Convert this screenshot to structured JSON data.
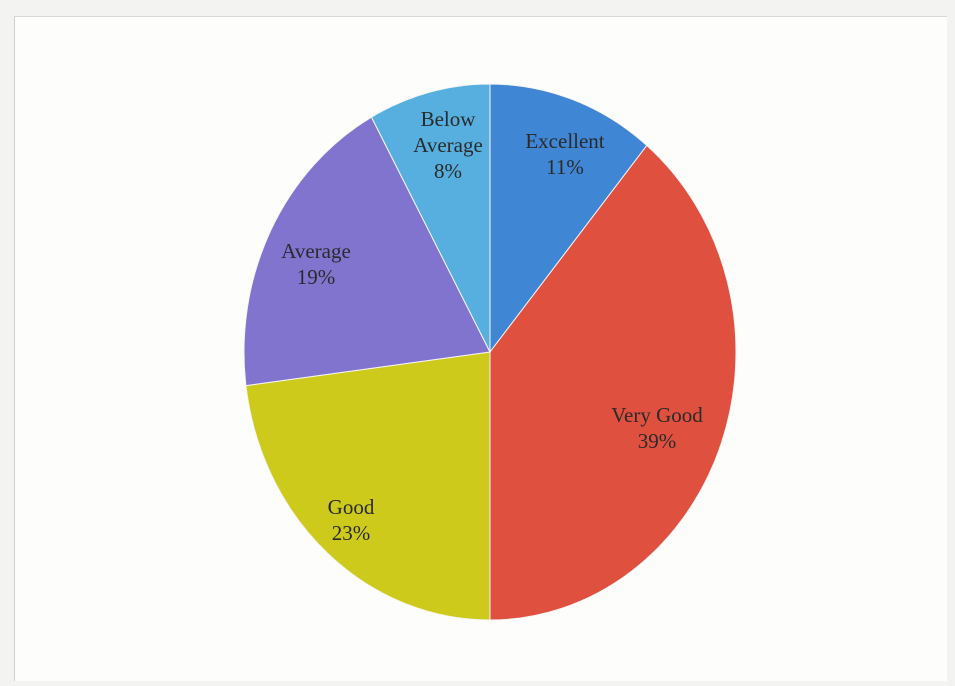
{
  "chart_data": {
    "type": "pie",
    "title": "",
    "start_angle_deg": 0,
    "slices": [
      {
        "label": "Excellent",
        "value": 11,
        "value_label": "11%",
        "color": "#3f86d4"
      },
      {
        "label": "Very Good",
        "value": 39,
        "value_label": "39%",
        "color": "#e0503f"
      },
      {
        "label": "Good",
        "value": 23,
        "value_label": "23%",
        "color": "#cdca1c"
      },
      {
        "label": "Average",
        "value": 19,
        "value_label": "19%",
        "color": "#8174cf"
      },
      {
        "label": "Below Average",
        "value": 8,
        "value_label": "8%",
        "color": "#56afdf"
      }
    ]
  }
}
